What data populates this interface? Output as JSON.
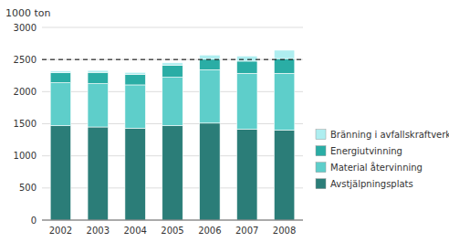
{
  "chart_data": {
    "type": "bar",
    "stacked": true,
    "y_label": "1000 ton",
    "categories": [
      "2002",
      "2003",
      "2004",
      "2005",
      "2006",
      "2007",
      "2008"
    ],
    "series": [
      {
        "name": "Avstjälpningsplats",
        "color": "#2b7d78",
        "values": [
          1470,
          1450,
          1430,
          1470,
          1510,
          1415,
          1400
        ]
      },
      {
        "name": "Material återvinning",
        "color": "#5ececa",
        "values": [
          670,
          675,
          675,
          755,
          830,
          870,
          885
        ]
      },
      {
        "name": "Energiutvinning",
        "color": "#2aada5",
        "values": [
          155,
          175,
          165,
          185,
          165,
          190,
          230
        ]
      },
      {
        "name": "Bränning i avfallskraftverk",
        "color": "#aeeef0",
        "values": [
          25,
          30,
          30,
          38,
          65,
          80,
          130
        ]
      }
    ],
    "ylim": [
      0,
      3000
    ],
    "yticks": [
      0,
      500,
      1000,
      1500,
      2000,
      2500,
      3000
    ],
    "reference_line": 2500,
    "grid": true,
    "legend": "right"
  }
}
